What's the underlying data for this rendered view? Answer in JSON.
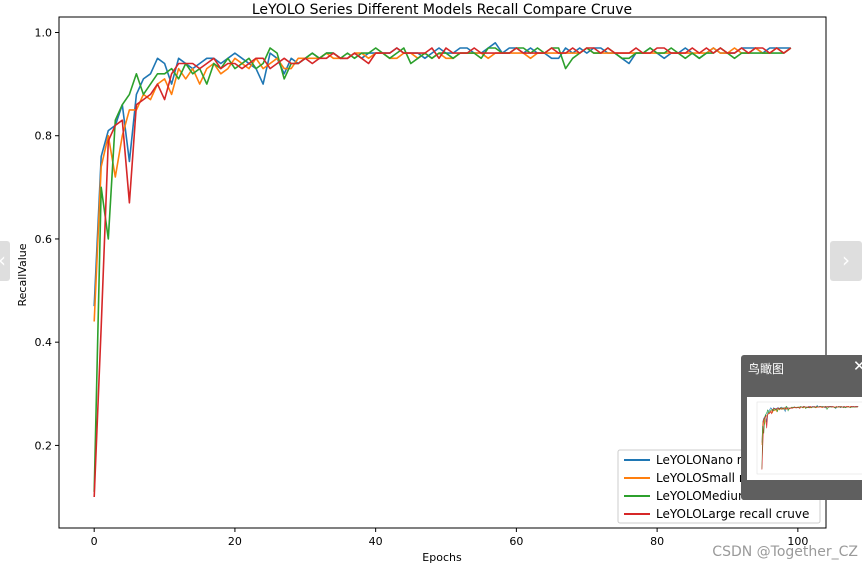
{
  "chart_data": {
    "type": "line",
    "title": "LeYOLO Series Different Models Recall Compare Cruve",
    "xlabel": "Epochs",
    "ylabel": "RecallValue",
    "xlim": [
      -5,
      104
    ],
    "ylim": [
      0.04,
      1.03
    ],
    "xticks": [
      0,
      20,
      40,
      60,
      80,
      100
    ],
    "yticks": [
      0.2,
      0.4,
      0.6,
      0.8,
      1.0
    ],
    "xtick_labels": [
      "0",
      "20",
      "40",
      "60",
      "80",
      "100"
    ],
    "ytick_labels": [
      "0.2",
      "0.4",
      "0.6",
      "0.8",
      "1.0"
    ],
    "grid": false,
    "legend_position": "lower-right",
    "series": [
      {
        "name": "LeYOLONano recall cruve",
        "color": "#1f77b4",
        "values": [
          0.47,
          0.76,
          0.81,
          0.82,
          0.86,
          0.75,
          0.88,
          0.91,
          0.92,
          0.95,
          0.94,
          0.9,
          0.95,
          0.94,
          0.93,
          0.94,
          0.95,
          0.95,
          0.94,
          0.95,
          0.96,
          0.95,
          0.94,
          0.93,
          0.9,
          0.96,
          0.95,
          0.92,
          0.95,
          0.94,
          0.95,
          0.96,
          0.95,
          0.96,
          0.96,
          0.95,
          0.95,
          0.96,
          0.95,
          0.96,
          0.96,
          0.96,
          0.96,
          0.97,
          0.96,
          0.96,
          0.96,
          0.95,
          0.96,
          0.97,
          0.96,
          0.96,
          0.97,
          0.97,
          0.96,
          0.96,
          0.97,
          0.98,
          0.96,
          0.97,
          0.97,
          0.96,
          0.97,
          0.96,
          0.96,
          0.95,
          0.95,
          0.97,
          0.96,
          0.97,
          0.96,
          0.97,
          0.97,
          0.96,
          0.96,
          0.95,
          0.94,
          0.96,
          0.96,
          0.97,
          0.96,
          0.95,
          0.96,
          0.96,
          0.97,
          0.96,
          0.95,
          0.96,
          0.97,
          0.96,
          0.96,
          0.96,
          0.97,
          0.97,
          0.97,
          0.96,
          0.97,
          0.97,
          0.97,
          0.97
        ]
      },
      {
        "name": "LeYOLOSmall recall cruve",
        "color": "#ff7f0e",
        "values": [
          0.44,
          0.74,
          0.8,
          0.72,
          0.8,
          0.85,
          0.85,
          0.88,
          0.87,
          0.9,
          0.91,
          0.88,
          0.93,
          0.91,
          0.93,
          0.9,
          0.93,
          0.94,
          0.92,
          0.93,
          0.95,
          0.94,
          0.93,
          0.95,
          0.93,
          0.94,
          0.95,
          0.93,
          0.93,
          0.95,
          0.95,
          0.95,
          0.95,
          0.96,
          0.95,
          0.95,
          0.95,
          0.96,
          0.96,
          0.95,
          0.96,
          0.96,
          0.95,
          0.95,
          0.96,
          0.96,
          0.95,
          0.96,
          0.95,
          0.96,
          0.95,
          0.95,
          0.96,
          0.96,
          0.96,
          0.96,
          0.95,
          0.96,
          0.96,
          0.96,
          0.96,
          0.96,
          0.95,
          0.96,
          0.96,
          0.96,
          0.96,
          0.96,
          0.96,
          0.96,
          0.97,
          0.96,
          0.96,
          0.96,
          0.96,
          0.96,
          0.96,
          0.96,
          0.96,
          0.96,
          0.96,
          0.96,
          0.96,
          0.96,
          0.96,
          0.96,
          0.96,
          0.96,
          0.97,
          0.96,
          0.96,
          0.97,
          0.96,
          0.96,
          0.97,
          0.96,
          0.96,
          0.97,
          0.96,
          0.97
        ]
      },
      {
        "name": "LeYOLOMedium recall cruve",
        "color": "#2ca02c",
        "values": [
          0.11,
          0.7,
          0.6,
          0.83,
          0.86,
          0.88,
          0.92,
          0.88,
          0.9,
          0.92,
          0.92,
          0.93,
          0.91,
          0.94,
          0.92,
          0.93,
          0.9,
          0.94,
          0.93,
          0.95,
          0.93,
          0.94,
          0.95,
          0.93,
          0.94,
          0.97,
          0.96,
          0.91,
          0.94,
          0.94,
          0.95,
          0.96,
          0.95,
          0.96,
          0.96,
          0.95,
          0.96,
          0.95,
          0.96,
          0.96,
          0.97,
          0.96,
          0.95,
          0.96,
          0.97,
          0.94,
          0.95,
          0.96,
          0.95,
          0.96,
          0.96,
          0.95,
          0.96,
          0.96,
          0.96,
          0.95,
          0.97,
          0.97,
          0.96,
          0.96,
          0.97,
          0.97,
          0.96,
          0.97,
          0.96,
          0.97,
          0.97,
          0.93,
          0.95,
          0.96,
          0.97,
          0.96,
          0.96,
          0.97,
          0.96,
          0.95,
          0.95,
          0.96,
          0.96,
          0.97,
          0.96,
          0.96,
          0.97,
          0.96,
          0.95,
          0.96,
          0.95,
          0.96,
          0.96,
          0.97,
          0.96,
          0.95,
          0.96,
          0.96,
          0.96,
          0.96,
          0.96,
          0.96,
          0.96,
          0.97
        ]
      },
      {
        "name": "LeYOLOLarge recall cruve",
        "color": "#d62728",
        "values": [
          0.1,
          0.43,
          0.79,
          0.82,
          0.83,
          0.67,
          0.86,
          0.87,
          0.88,
          0.9,
          0.87,
          0.92,
          0.94,
          0.94,
          0.94,
          0.93,
          0.94,
          0.95,
          0.93,
          0.94,
          0.94,
          0.93,
          0.94,
          0.95,
          0.95,
          0.93,
          0.94,
          0.95,
          0.94,
          0.94,
          0.95,
          0.94,
          0.95,
          0.95,
          0.96,
          0.95,
          0.95,
          0.96,
          0.95,
          0.94,
          0.96,
          0.96,
          0.96,
          0.97,
          0.96,
          0.96,
          0.96,
          0.96,
          0.97,
          0.95,
          0.97,
          0.96,
          0.96,
          0.96,
          0.97,
          0.96,
          0.96,
          0.96,
          0.96,
          0.96,
          0.97,
          0.96,
          0.96,
          0.96,
          0.96,
          0.97,
          0.96,
          0.96,
          0.97,
          0.96,
          0.97,
          0.97,
          0.96,
          0.97,
          0.96,
          0.96,
          0.96,
          0.97,
          0.96,
          0.96,
          0.97,
          0.97,
          0.96,
          0.96,
          0.96,
          0.97,
          0.96,
          0.97,
          0.96,
          0.97,
          0.96,
          0.96,
          0.97,
          0.96,
          0.97,
          0.97,
          0.96,
          0.97,
          0.96,
          0.97
        ]
      }
    ]
  },
  "ui": {
    "nav_left_glyph": "‹",
    "nav_right_glyph": "›",
    "overview_title": "鸟瞰图",
    "overview_close_glyph": "✕",
    "watermark": "CSDN @Together_CZ"
  }
}
